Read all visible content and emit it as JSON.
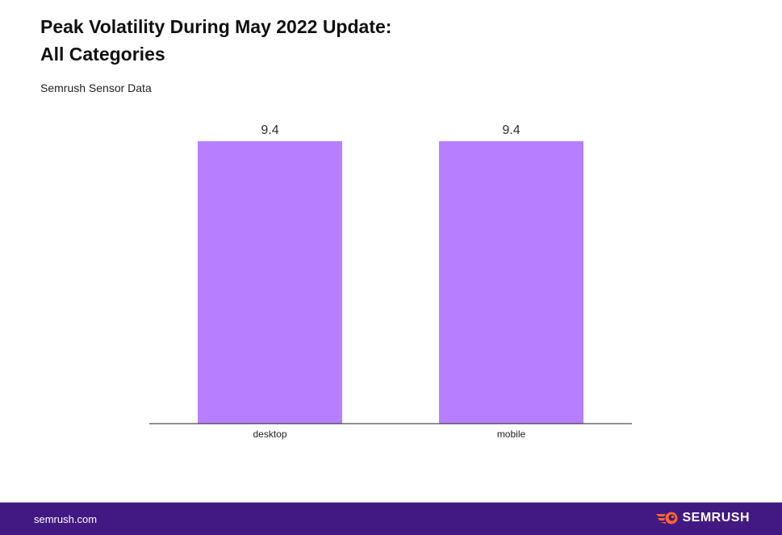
{
  "header": {
    "title_line1": "Peak Volatility During May 2022 Update:",
    "title_line2": "All Categories",
    "subtitle": "Semrush Sensor Data"
  },
  "chart_data": {
    "type": "bar",
    "categories": [
      "desktop",
      "mobile"
    ],
    "values": [
      9.4,
      9.4
    ],
    "data_labels": [
      "9.4",
      "9.4"
    ],
    "ylim": [
      0,
      9.4
    ],
    "grid": false,
    "bar_color": "#b77fff"
  },
  "footer": {
    "site": "semrush.com",
    "logo_text": "SEMRUSH",
    "background": "#421983",
    "logo_accent": "#ff642d"
  }
}
